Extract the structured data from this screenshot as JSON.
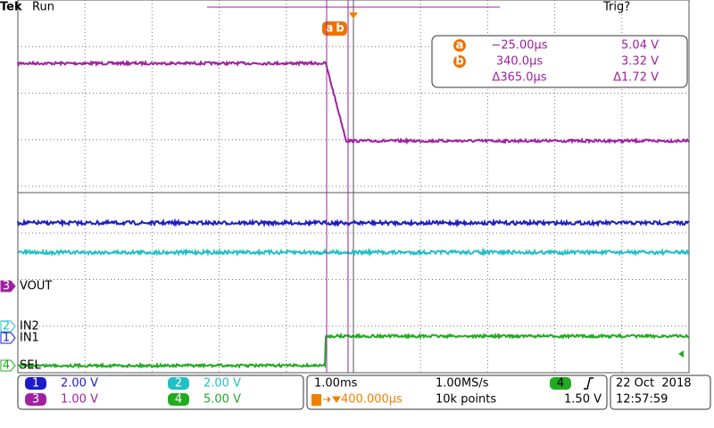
{
  "header": {
    "brand": "Tek",
    "status": "Run",
    "trigger_status": "Trig?"
  },
  "cursor_flags": [
    "a",
    "b"
  ],
  "readout": [
    {
      "marker": "a",
      "time": "−25.00µs",
      "voltage": "5.04 V"
    },
    {
      "marker": "b",
      "time": "340.0µs",
      "voltage": "3.32 V"
    },
    {
      "time": "Δ365.0µs",
      "voltage": "Δ1.72 V"
    }
  ],
  "channels": [
    {
      "number": "3",
      "label": "VOUT"
    },
    {
      "number": "2",
      "label": "IN2"
    },
    {
      "number": "1",
      "label": "IN1"
    },
    {
      "number": "4",
      "label": "SEL"
    }
  ],
  "status_bar": {
    "scales": [
      {
        "channel": "1",
        "value": "2.00 V"
      },
      {
        "channel": "2",
        "value": "2.00 V"
      },
      {
        "channel": "3",
        "value": "1.00 V"
      },
      {
        "channel": "4",
        "value": "5.00 V"
      }
    ],
    "timebase": "1.00ms",
    "sample_rate": "1.00MS/s",
    "trigger_position": "400.000µs",
    "record_length": "10k points",
    "trigger_channel": "4",
    "trigger_level": "1.50 V",
    "date": "22 Oct  2018",
    "time": "12:57:59"
  }
}
